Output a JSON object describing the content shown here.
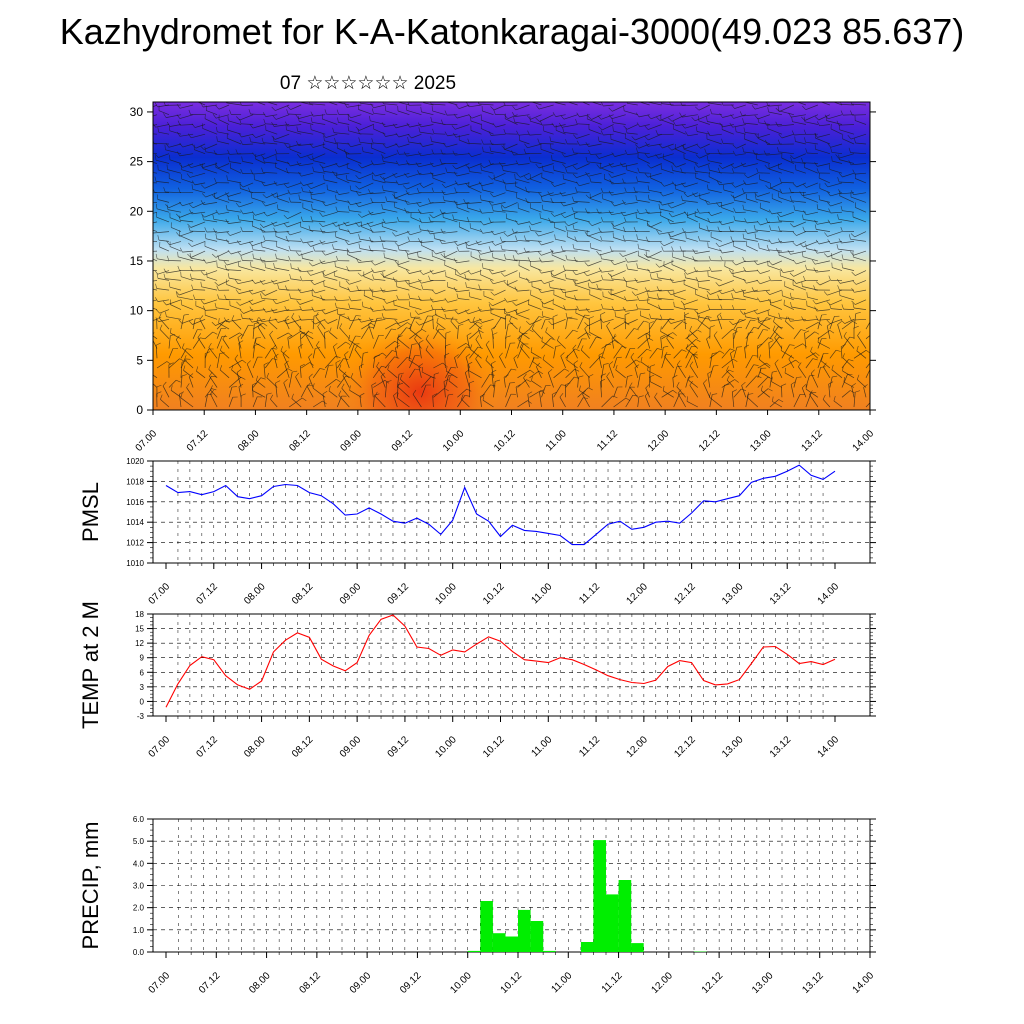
{
  "title": "Kazhydromet for K-A-Katonkaragai-3000(49.023 85.637)",
  "subtitle": "07 ☆☆☆☆☆☆ 2025",
  "colors": {
    "pmsl": "#0000ff",
    "temp": "#ff0000",
    "precip": "#00ee00",
    "grid": "#000000"
  },
  "chart_data": [
    {
      "type": "heatmap",
      "title": "",
      "xlabel": "",
      "ylabel": "",
      "x_ticks": [
        "07.00",
        "07.12",
        "08.00",
        "08.12",
        "09.00",
        "09.12",
        "10.00",
        "10.12",
        "11.00",
        "11.12",
        "12.00",
        "12.12",
        "13.00",
        "13.12",
        "14.00"
      ],
      "y_ticks": [
        0,
        5,
        10,
        15,
        20,
        25,
        30
      ],
      "ylim": [
        0,
        31
      ],
      "colormap": [
        "#f04010",
        "#ff9a00",
        "#ffcf55",
        "#f5eaa0",
        "#9cd0f0",
        "#2aa0e8",
        "#0a3fd8",
        "#4a1ad8",
        "#7a2ae0"
      ],
      "overlay": "wind barbs"
    },
    {
      "type": "line",
      "ylabel": "PMSL",
      "ylim": [
        1010,
        1020
      ],
      "y_ticks": [
        "1010",
        "1012",
        "1014",
        "1016",
        "1018",
        "1020"
      ],
      "x_ticks": [
        "07.00",
        "07.12",
        "08.00",
        "08.12",
        "09.00",
        "09.12",
        "10.00",
        "10.12",
        "11.00",
        "11.12",
        "12.00",
        "12.12",
        "13.00",
        "13.12",
        "14.00"
      ],
      "series": [
        {
          "values": [
            1017.6,
            1016.9,
            1017.0,
            1016.7,
            1017.0,
            1017.6,
            1016.5,
            1016.3,
            1016.6,
            1017.5,
            1017.7,
            1017.6,
            1016.9,
            1016.6,
            1015.8,
            1014.7,
            1014.8,
            1015.4,
            1014.8,
            1014.1,
            1013.9,
            1014.4,
            1013.8,
            1012.8,
            1014.2,
            1017.4,
            1014.8,
            1014.1,
            1012.6,
            1013.7,
            1013.2,
            1013.1,
            1012.9,
            1012.7,
            1011.8,
            1011.8,
            1012.8,
            1013.8,
            1014.1,
            1013.3,
            1013.5,
            1014.0,
            1014.1,
            1013.9,
            1014.9,
            1016.1,
            1016.0,
            1016.3,
            1016.6,
            1017.9,
            1018.3,
            1018.5,
            1019.0,
            1019.6,
            1018.6,
            1018.2,
            1019.0
          ]
        }
      ]
    },
    {
      "type": "line",
      "ylabel": "TEMP at 2 M",
      "ylim": [
        -3,
        18
      ],
      "y_ticks": [
        "-3",
        "0",
        "3",
        "6",
        "9",
        "12",
        "15",
        "18"
      ],
      "x_ticks": [
        "07.00",
        "07.12",
        "08.00",
        "08.12",
        "09.00",
        "09.12",
        "10.00",
        "10.12",
        "11.00",
        "11.12",
        "12.00",
        "12.12",
        "13.00",
        "13.12",
        "14.00"
      ],
      "series": [
        {
          "values": [
            -1.2,
            3.6,
            7.4,
            9.2,
            8.6,
            5.3,
            3.4,
            2.5,
            4.2,
            10.2,
            12.6,
            14.1,
            13.2,
            8.7,
            7.3,
            6.3,
            8.0,
            13.6,
            16.9,
            17.8,
            15.5,
            11.2,
            10.9,
            9.5,
            10.6,
            10.2,
            11.8,
            13.3,
            12.4,
            10.3,
            8.6,
            8.3,
            8.0,
            9.0,
            8.6,
            7.6,
            6.5,
            5.3,
            4.5,
            3.9,
            3.7,
            4.4,
            7.2,
            8.4,
            8.0,
            4.3,
            3.4,
            3.6,
            4.5,
            7.8,
            11.2,
            11.3,
            9.7,
            7.8,
            8.2,
            7.6,
            8.7
          ]
        }
      ]
    },
    {
      "type": "bar",
      "ylabel": "PRECIP, mm",
      "ylim": [
        0,
        6
      ],
      "y_ticks": [
        "0.0",
        "1.0",
        "2.0",
        "3.0",
        "4.0",
        "5.0",
        "6.0"
      ],
      "x_ticks": [
        "07.00",
        "07.12",
        "08.00",
        "08.12",
        "09.00",
        "09.12",
        "10.00",
        "10.12",
        "11.00",
        "11.12",
        "12.00",
        "12.12",
        "13.00",
        "13.12",
        "14.00"
      ],
      "series": [
        {
          "values": [
            0,
            0,
            0,
            0,
            0,
            0,
            0,
            0,
            0,
            0,
            0,
            0,
            0,
            0,
            0,
            0,
            0,
            0,
            0,
            0,
            0,
            0,
            0,
            0,
            0.05,
            2.3,
            0.85,
            0.7,
            1.9,
            1.4,
            0.05,
            0,
            0,
            0.45,
            5.05,
            2.6,
            3.25,
            0.4,
            0,
            0,
            0,
            0,
            0.02,
            0,
            0,
            0,
            0,
            0,
            0,
            0,
            0,
            0,
            0,
            0,
            0,
            0
          ]
        }
      ]
    }
  ]
}
